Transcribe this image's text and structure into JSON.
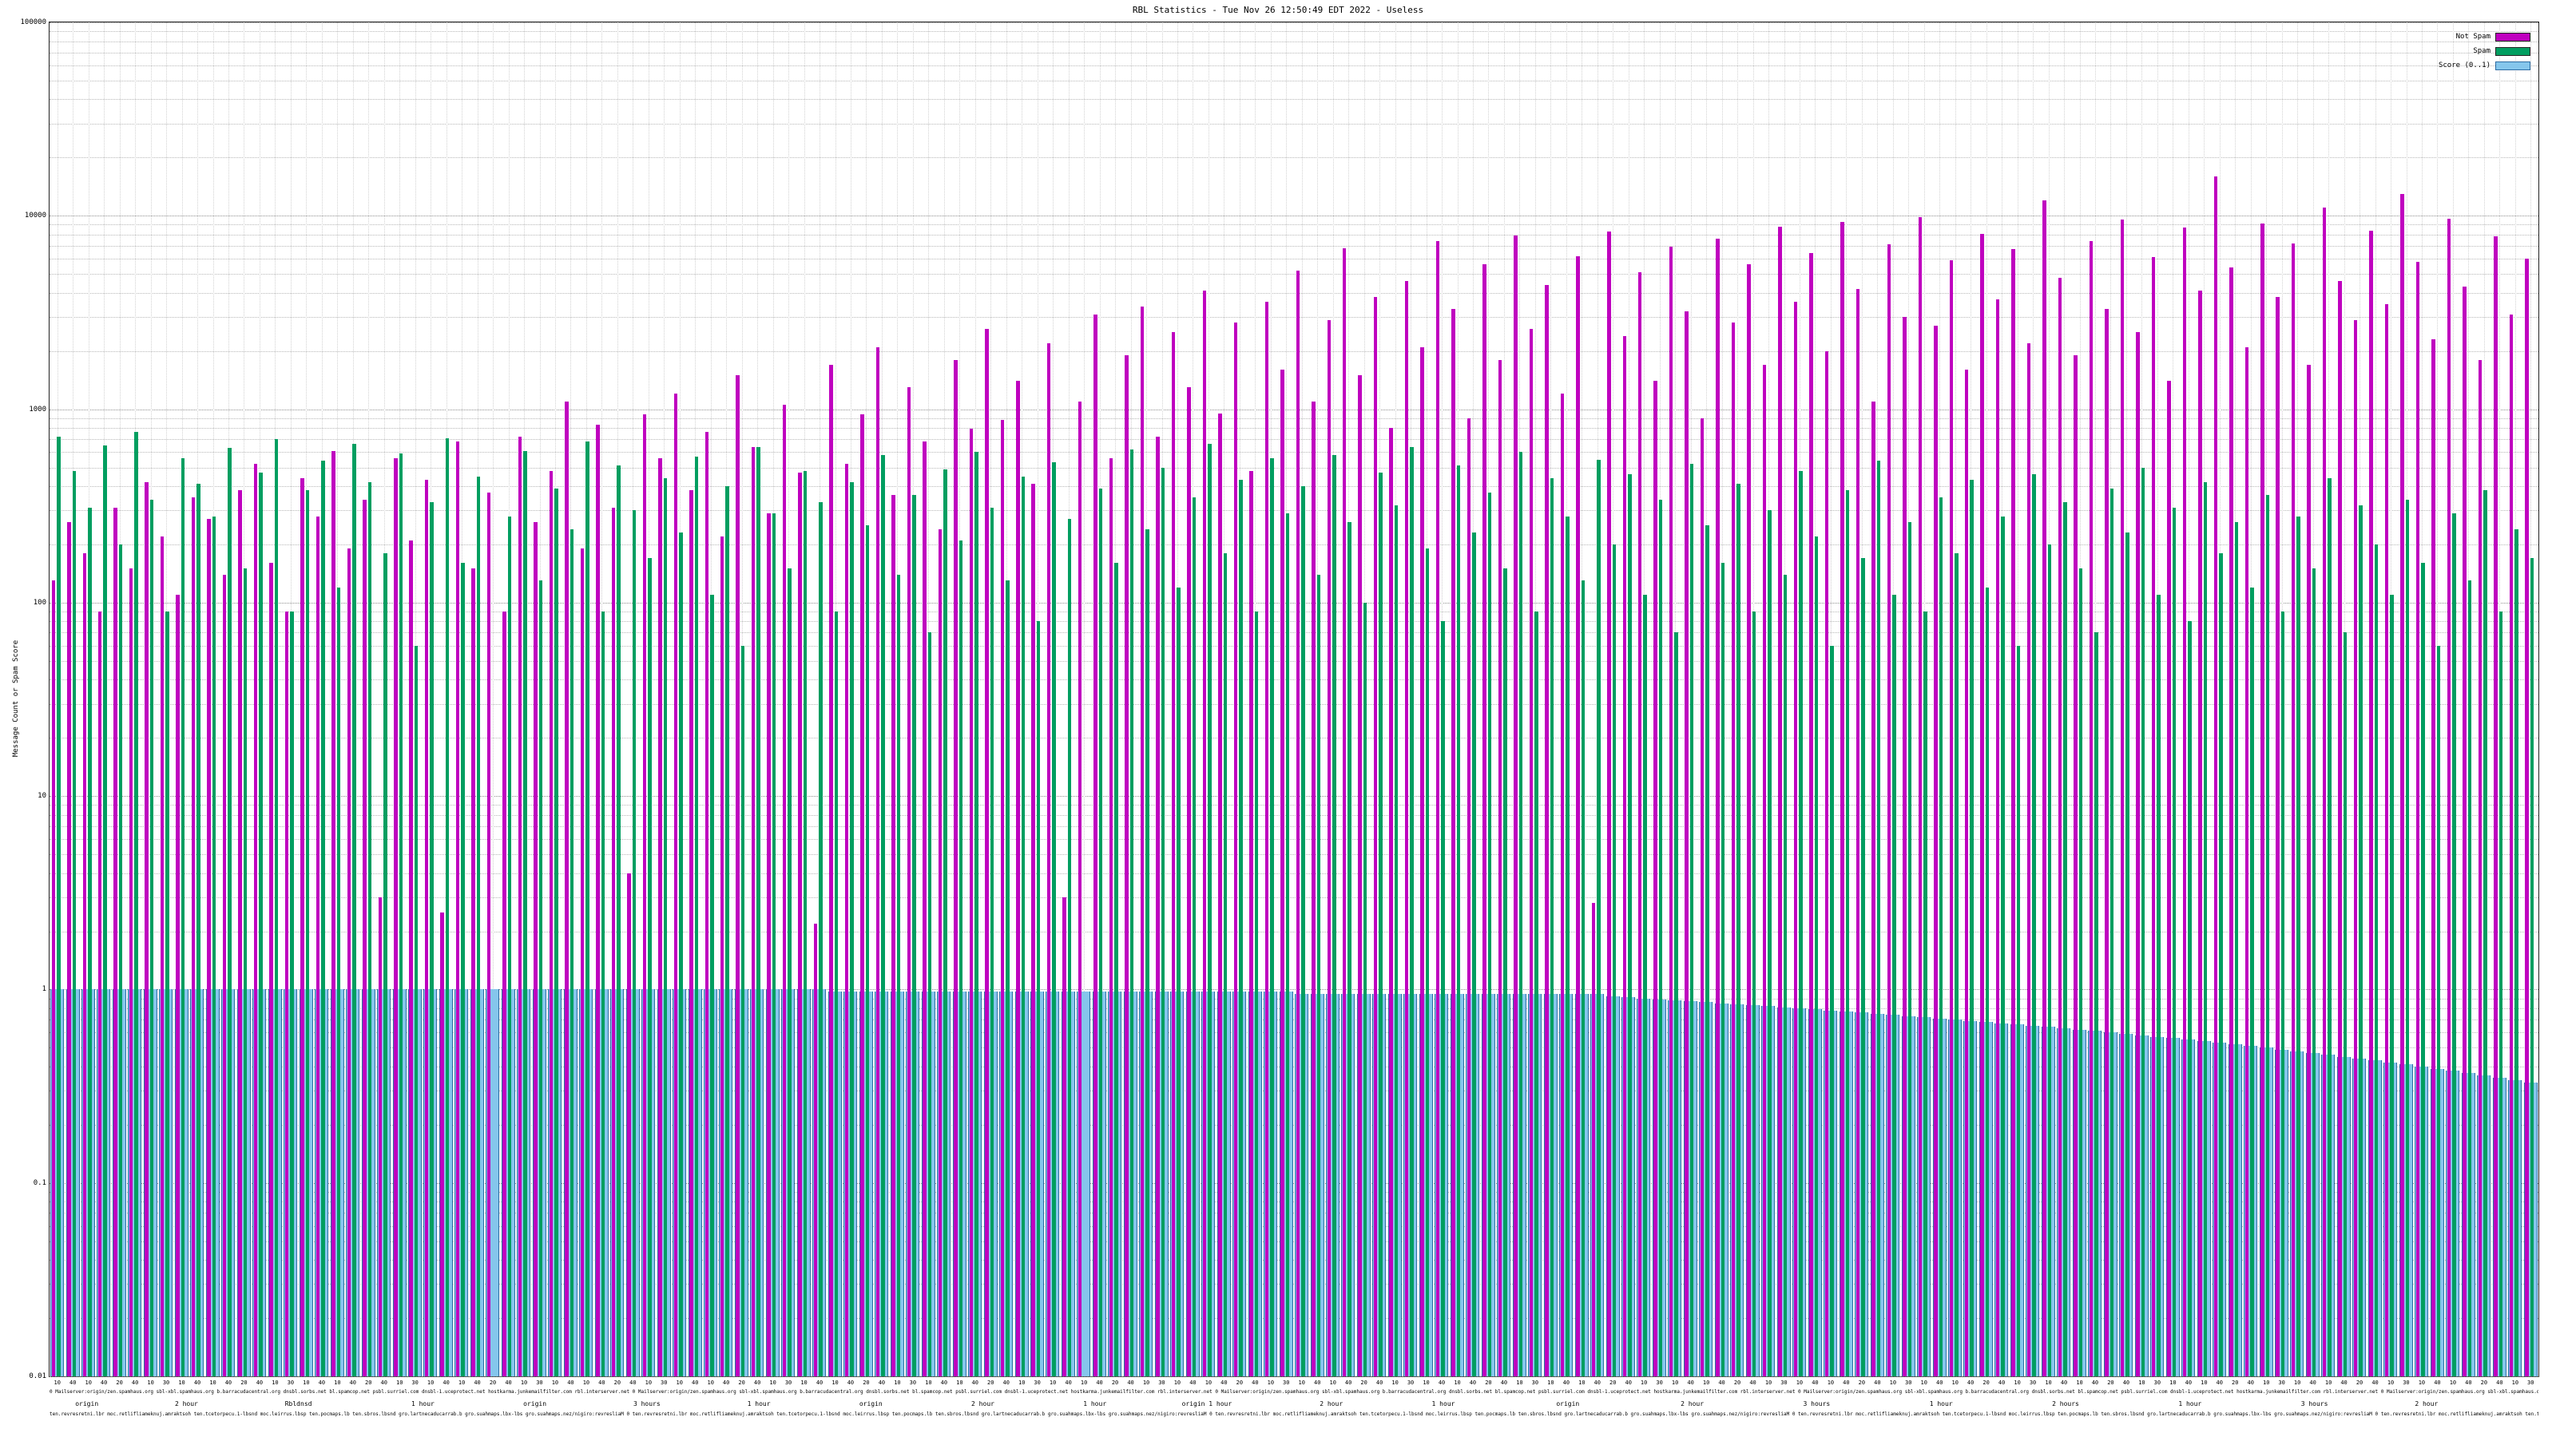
{
  "title": "RBL Statistics - Tue Nov 26 12:50:49 EDT 2022 - Useless",
  "ylabel": "Message Count or Spam Score",
  "legend": [
    {
      "label": "Not Spam",
      "color": "#bf00bf"
    },
    {
      "label": "Spam",
      "color": "#009e60"
    },
    {
      "label": "Score (0..1)",
      "color": "#85c6ec"
    }
  ],
  "colors": {
    "not_spam": "#bf00bf",
    "spam": "#009e60",
    "score_fill": "#85c6ec",
    "score_border": "#2e6da4",
    "grid_major": "#8f8f8f",
    "grid_minor": "#b8b8b8",
    "axis": "#222222"
  },
  "chart_data": {
    "type": "bar",
    "scale": "log",
    "ylim": [
      0.01,
      100000
    ],
    "y_tick_labels": [
      "100000",
      "10000",
      "1000",
      "100",
      "10",
      "1",
      "0.1",
      "0.01"
    ],
    "x_tick_cycle": [
      "10",
      "40",
      "10",
      "40",
      "20",
      "40",
      "10",
      "30"
    ],
    "title": "RBL Statistics - Tue Nov 26 12:50:49 EDT 2022 - Useless",
    "ylabel": "Message Count or Spam Score",
    "legend_position": "top-right",
    "grid": true,
    "series": [
      {
        "name": "Not Spam",
        "values": [
          130,
          260,
          180,
          90,
          310,
          150,
          420,
          220,
          110,
          350,
          270,
          140,
          380,
          520,
          160,
          90,
          440,
          280,
          610,
          190,
          340,
          3,
          560,
          210,
          430,
          2.5,
          680,
          150,
          370,
          90,
          720,
          260,
          480,
          1100,
          190,
          830,
          310,
          4,
          940,
          560,
          1200,
          380,
          760,
          220,
          1500,
          640,
          290,
          1050,
          470,
          2.2,
          1700,
          520,
          940,
          2100,
          360,
          1300,
          680,
          240,
          1800,
          790,
          2600,
          880,
          1400,
          410,
          2200,
          3,
          1100,
          3100,
          560,
          1900,
          3400,
          720,
          2500,
          1300,
          4100,
          950,
          2800,
          480,
          3600,
          1600,
          5200,
          1100,
          2900,
          6800,
          1500,
          3800,
          800,
          4600,
          2100,
          7400,
          3300,
          900,
          5600,
          1800,
          7900,
          2600,
          4400,
          1200,
          6200,
          2.8,
          8300,
          2400,
          5100,
          1400,
          6900,
          3200,
          900,
          7600,
          2800,
          5600,
          1700,
          8800,
          3600,
          6400,
          2000,
          9300,
          4200,
          1100,
          7100,
          3000,
          9800,
          2700,
          5900,
          1600,
          8100,
          3700,
          6700,
          2200,
          12000,
          4800,
          1900,
          7400,
          3300,
          9600,
          2500,
          6100,
          1400,
          8700,
          4100,
          16000,
          5400,
          2100,
          9100,
          3800,
          7200,
          1700,
          11000,
          4600,
          2900,
          8400,
          3500,
          13000,
          5800,
          2300,
          9700,
          4300,
          1800,
          7800,
          3100,
          6000
        ]
      },
      {
        "name": "Spam",
        "values": [
          720,
          480,
          310,
          650,
          200,
          760,
          340,
          90,
          560,
          410,
          280,
          630,
          150,
          470,
          700,
          90,
          380,
          540,
          120,
          660,
          420,
          180,
          590,
          60,
          330,
          710,
          160,
          450,
          0,
          280,
          610,
          130,
          390,
          240,
          680,
          90,
          510,
          300,
          170,
          440,
          230,
          570,
          110,
          400,
          60,
          640,
          290,
          150,
          480,
          330,
          90,
          420,
          250,
          580,
          140,
          360,
          70,
          490,
          210,
          600,
          310,
          130,
          450,
          80,
          530,
          270,
          0,
          390,
          160,
          620,
          240,
          500,
          120,
          350,
          660,
          180,
          430,
          90,
          560,
          290,
          400,
          140,
          580,
          260,
          100,
          470,
          320,
          640,
          190,
          80,
          510,
          230,
          370,
          150,
          600,
          90,
          440,
          280,
          130,
          550,
          200,
          460,
          110,
          340,
          70,
          520,
          250,
          160,
          410,
          90,
          300,
          140,
          480,
          220,
          60,
          380,
          170,
          540,
          110,
          260,
          90,
          350,
          180,
          430,
          120,
          280,
          60,
          460,
          200,
          330,
          150,
          70,
          390,
          230,
          500,
          110,
          310,
          80,
          420,
          180,
          260,
          120,
          360,
          90,
          280,
          150,
          440,
          70,
          320,
          200,
          110,
          340,
          160,
          60,
          290,
          130,
          380,
          90,
          240,
          170
        ]
      },
      {
        "name": "Score (0..1)",
        "values": [
          1,
          1,
          1,
          1,
          1,
          1,
          1,
          1,
          1,
          1,
          1,
          1,
          1,
          1,
          1,
          1,
          1,
          1,
          1,
          1,
          1,
          1,
          1,
          1,
          1,
          1,
          1,
          1,
          1,
          1,
          1,
          1,
          1,
          1,
          1,
          1,
          1,
          1,
          1,
          1,
          1,
          1,
          1,
          1,
          1,
          1,
          1,
          1,
          1,
          1,
          0.98,
          0.98,
          0.98,
          0.98,
          0.98,
          0.98,
          0.98,
          0.98,
          0.98,
          0.98,
          0.98,
          0.98,
          0.98,
          0.98,
          0.98,
          0.98,
          0.98,
          0.98,
          0.98,
          0.98,
          0.98,
          0.98,
          0.98,
          0.98,
          0.98,
          0.98,
          0.98,
          0.98,
          0.98,
          0.98,
          0.95,
          0.95,
          0.95,
          0.95,
          0.95,
          0.95,
          0.95,
          0.95,
          0.95,
          0.95,
          0.95,
          0.95,
          0.95,
          0.95,
          0.95,
          0.95,
          0.95,
          0.95,
          0.95,
          0.95,
          0.92,
          0.91,
          0.9,
          0.89,
          0.88,
          0.87,
          0.86,
          0.85,
          0.84,
          0.83,
          0.82,
          0.81,
          0.8,
          0.79,
          0.78,
          0.77,
          0.76,
          0.75,
          0.74,
          0.73,
          0.72,
          0.71,
          0.7,
          0.69,
          0.68,
          0.67,
          0.66,
          0.65,
          0.64,
          0.63,
          0.62,
          0.61,
          0.6,
          0.59,
          0.58,
          0.57,
          0.56,
          0.55,
          0.54,
          0.53,
          0.52,
          0.51,
          0.5,
          0.49,
          0.48,
          0.47,
          0.46,
          0.45,
          0.44,
          0.43,
          0.42,
          0.41,
          0.4,
          0.39,
          0.38,
          0.37,
          0.36,
          0.35,
          0.34,
          0.33
        ]
      }
    ],
    "x_micro_text": "0 Mailserver:origin/zen.spamhaus.org sbl-xbl.spamhaus.org b.barracudacentral.org dnsbl.sorbs.net bl.spamcop.net psbl.surriel.com dnsbl-1.uceprotect.net hostkarma.junkemailfilter.com rbl.interserver.net ",
    "x_group_labels": [
      {
        "pos": 0.015,
        "text": "origin"
      },
      {
        "pos": 0.055,
        "text": "2 hour"
      },
      {
        "pos": 0.1,
        "text": "Rbldnsd"
      },
      {
        "pos": 0.15,
        "text": "1 hour"
      },
      {
        "pos": 0.195,
        "text": "origin"
      },
      {
        "pos": 0.24,
        "text": "3 hours"
      },
      {
        "pos": 0.285,
        "text": "1 hour"
      },
      {
        "pos": 0.33,
        "text": "origin"
      },
      {
        "pos": 0.375,
        "text": "2 hour"
      },
      {
        "pos": 0.42,
        "text": "1 hour"
      },
      {
        "pos": 0.465,
        "text": "origin 1 hour"
      },
      {
        "pos": 0.515,
        "text": "2 hour"
      },
      {
        "pos": 0.56,
        "text": "1 hour"
      },
      {
        "pos": 0.61,
        "text": "origin"
      },
      {
        "pos": 0.66,
        "text": "2 hour"
      },
      {
        "pos": 0.71,
        "text": "3 hours"
      },
      {
        "pos": 0.76,
        "text": "1 hour"
      },
      {
        "pos": 0.81,
        "text": "2 hours"
      },
      {
        "pos": 0.86,
        "text": "1 hour"
      },
      {
        "pos": 0.91,
        "text": "3 hours"
      },
      {
        "pos": 0.955,
        "text": "2 hour"
      }
    ]
  }
}
